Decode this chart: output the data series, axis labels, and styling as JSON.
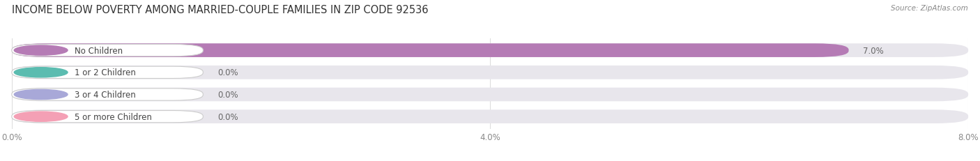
{
  "title": "INCOME BELOW POVERTY AMONG MARRIED-COUPLE FAMILIES IN ZIP CODE 92536",
  "source": "Source: ZipAtlas.com",
  "categories": [
    "No Children",
    "1 or 2 Children",
    "3 or 4 Children",
    "5 or more Children"
  ],
  "values": [
    7.0,
    0.0,
    0.0,
    0.0
  ],
  "bar_colors": [
    "#b57bb5",
    "#5bbcb0",
    "#a8a8d8",
    "#f4a0b5"
  ],
  "xlim": [
    0,
    8.0
  ],
  "xticks": [
    0.0,
    4.0,
    8.0
  ],
  "xtick_labels": [
    "0.0%",
    "4.0%",
    "8.0%"
  ],
  "bg_color": "#ffffff",
  "bar_bg_color": "#e8e6ec",
  "title_fontsize": 10.5,
  "label_fontsize": 8.5,
  "value_fontsize": 8.5
}
